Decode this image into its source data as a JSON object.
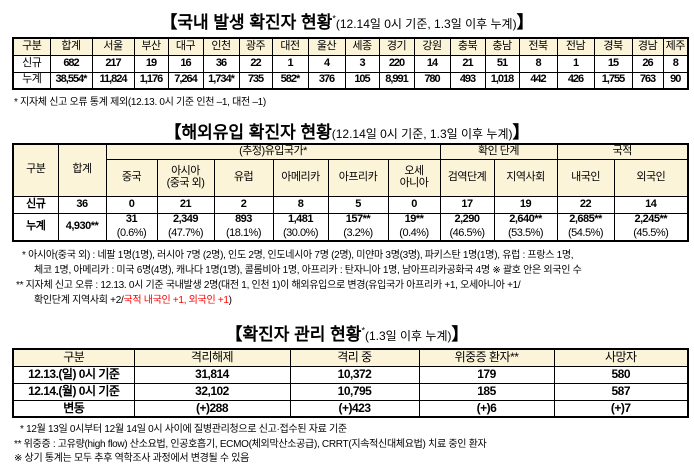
{
  "domestic": {
    "title": "【국내 발생 확진자 현황",
    "title_mark": "*",
    "title_sub": "(12.14일 0시 기준, 1.3일 이후 누계)",
    "title_end": "】",
    "headers": [
      "구분",
      "합계",
      "서울",
      "부산",
      "대구",
      "인천",
      "광주",
      "대전",
      "울산",
      "세종",
      "경기",
      "강원",
      "충북",
      "충남",
      "전북",
      "전남",
      "경북",
      "경남",
      "제주"
    ],
    "rows": [
      [
        "신규",
        "682",
        "217",
        "19",
        "16",
        "36",
        "22",
        "1",
        "4",
        "3",
        "220",
        "14",
        "21",
        "51",
        "8",
        "1",
        "15",
        "26",
        "8"
      ],
      [
        "누계",
        "38,554*",
        "11,824",
        "1,176",
        "7,264",
        "1,734*",
        "735",
        "582*",
        "376",
        "105",
        "8,991",
        "780",
        "493",
        "1,018",
        "442",
        "426",
        "1,755",
        "763",
        "90"
      ]
    ],
    "footnote": "* 지자체 신고 오류 통계 제외(12.13. 0시 기준 인천 –1, 대전 –1)"
  },
  "imported": {
    "title": "【해외유입 확진자 현황",
    "title_sub": "(12.14일 0시 기준,  1.3일 이후 누계)",
    "title_end": "】",
    "h_gubun": "구분",
    "h_total": "합계",
    "h_country": "(추정)유입국가*",
    "h_stage": "확인 단계",
    "h_nation": "국적",
    "sub_headers": [
      "중국",
      "아시아\n(중국 외)",
      "유럽",
      "아메리카",
      "아프리카",
      "오세\n아니아",
      "검역단계",
      "지역사회",
      "내국인",
      "외국인"
    ],
    "new_label": "신규",
    "new": [
      "36",
      "0",
      "21",
      "2",
      "8",
      "5",
      "0",
      "17",
      "19",
      "22",
      "14"
    ],
    "cum_label": "누계",
    "cum_total": "4,930**",
    "cum": [
      "31",
      "2,349",
      "893",
      "1,481",
      "157**",
      "19**",
      "2,290",
      "2,640**",
      "2,685**",
      "2,245**"
    ],
    "pct": [
      "(0.6%)",
      "(47.7%)",
      "(18.1%)",
      "(30.0%)",
      "(3.2%)",
      "(0.4%)",
      "(46.5%)",
      "(53.5%)",
      "(54.5%)",
      "(45.5%)"
    ],
    "fn1a": "*  아시아(중국 외) : 네팔 1명(1명), 러시아 7명 (2명), 인도 2명, 인도네시아 7명 (2명), 미얀마 3명(3명), 파키스탄 1명(1명), 유럽 : 프랑스 1명,",
    "fn1b": "체코 1명, 아메리카 : 미국 6명(4명), 캐나다 1명(1명), 콜롬비아 1명, 아프리카 : 탄자니아 1명, 남아프리카공화국 4명   ※ 괄호 안은 외국인 수",
    "fn2a": "**  지자체 신고 오류 : 12.13. 0시 기준 국내발생 2명(대전 1, 인천 1)이 해외유입으로 변경(유입국가 아프리카 +1, 오세아니아 +1/",
    "fn2b": "확인단계 지역사회  +2/",
    "fn2c": "국적 내국인 +1, 외국인 +1",
    "fn2d": ")"
  },
  "management": {
    "title": "【확진자 관리 현황",
    "title_mark": "*",
    "title_sub": "(1.3일 이후 누계)",
    "title_end": "】",
    "headers": [
      "구분",
      "격리해제",
      "격리 중",
      "위중증 환자**",
      "사망자"
    ],
    "rows": [
      [
        "12.13.(일) 0시 기준",
        "31,814",
        "10,372",
        "179",
        "580"
      ],
      [
        "12.14.(월) 0시 기준",
        "32,102",
        "10,795",
        "185",
        "587"
      ],
      [
        "변동",
        "(+)288",
        "(+)423",
        "(+)6",
        "(+)7"
      ]
    ],
    "fn1": "* 12월 13일 0시부터 12월 14일 0시 사이에 질병관리청으로 신고·접수된 자료 기준",
    "fn2": "** 위중증 : 고유량(high flow) 산소요법, 인공호흡기, ECMO(체외막산소공급), CRRT(지속적신대체요법) 치료 중인 환자",
    "fn3": "※ 상기 통계는 모두 추후 역학조사 과정에서 변경될 수 있음"
  },
  "colors": {
    "header_bg": "#fcf4d9",
    "note_red": "#ff0000"
  }
}
